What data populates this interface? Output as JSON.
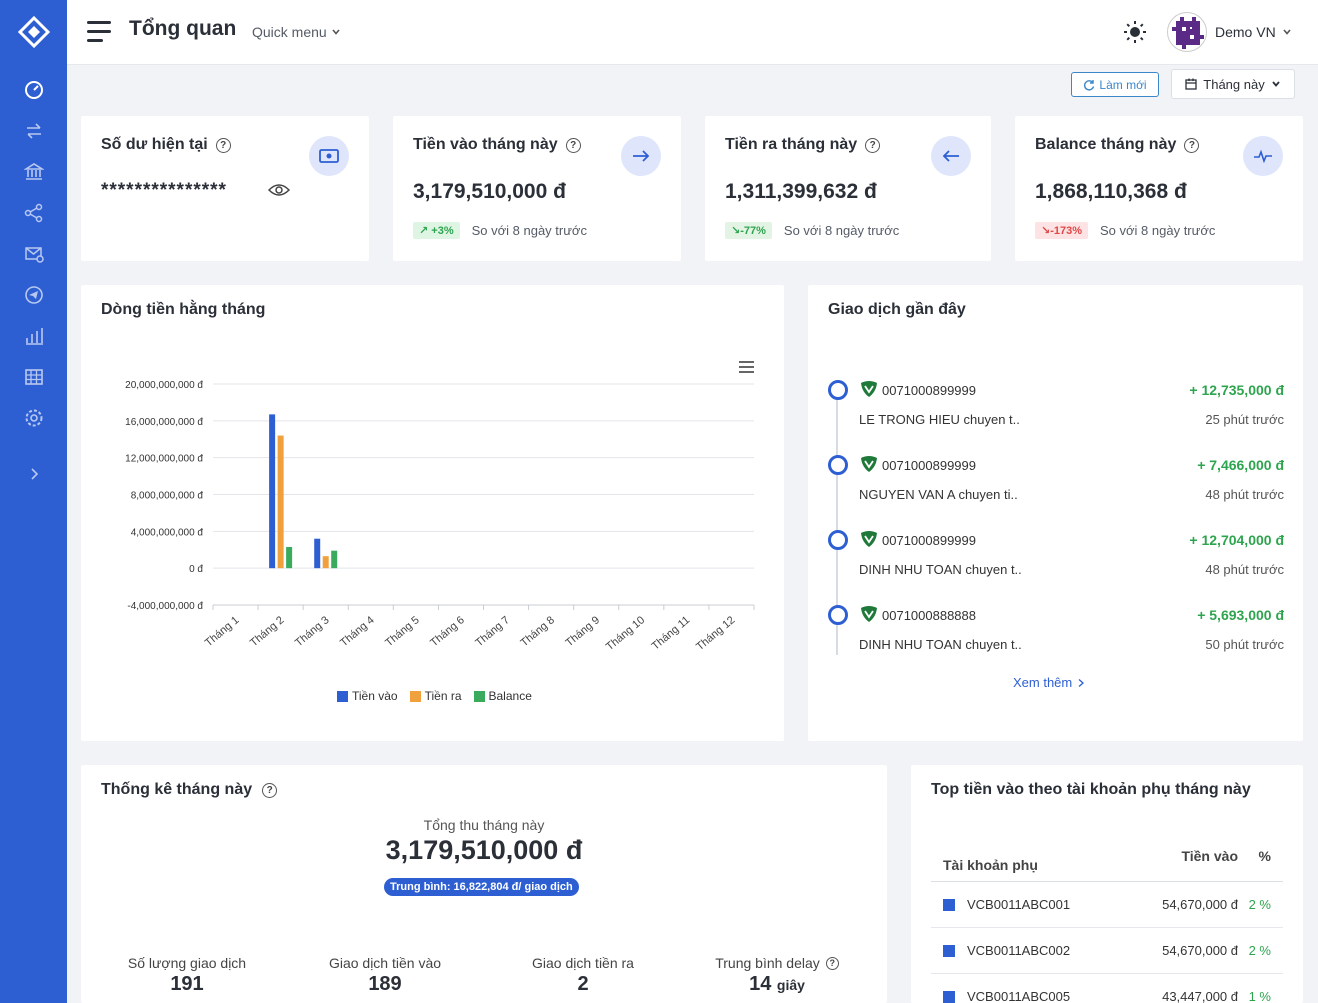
{
  "header": {
    "title": "Tổng quan",
    "quick_menu": "Quick menu",
    "user": "Demo VN",
    "refresh": "Làm mới",
    "period": "Tháng này"
  },
  "stats": {
    "balance": {
      "title": "Số dư hiện tại",
      "value": "***************"
    },
    "in": {
      "title": "Tiền vào tháng này",
      "value": "3,179,510,000 đ",
      "change": "↗ +3%",
      "note": "So với 8 ngày trước"
    },
    "out": {
      "title": "Tiền ra tháng này",
      "value": "1,311,399,632 đ",
      "change": "↘-77%",
      "note": "So với 8 ngày trước"
    },
    "net": {
      "title": "Balance tháng này",
      "value": "1,868,110,368 đ",
      "change": "↘-173%",
      "note": "So với 8 ngày trước"
    }
  },
  "cashflow": {
    "title": "Dòng tiền hằng tháng"
  },
  "chart_data": {
    "type": "bar",
    "title": "Dòng tiền hằng tháng",
    "categories": [
      "Tháng 1",
      "Tháng 2",
      "Tháng 3",
      "Tháng 4",
      "Tháng 5",
      "Tháng 6",
      "Tháng 7",
      "Tháng 8",
      "Tháng 9",
      "Tháng 10",
      "Tháng 11",
      "Tháng 12"
    ],
    "series": [
      {
        "name": "Tiền vào",
        "color": "#2d5fd3",
        "values": [
          0,
          16700000000,
          3200000000,
          0,
          0,
          0,
          0,
          0,
          0,
          0,
          0,
          0
        ]
      },
      {
        "name": "Tiền ra",
        "color": "#f0a03c",
        "values": [
          0,
          14400000000,
          1300000000,
          0,
          0,
          0,
          0,
          0,
          0,
          0,
          0,
          0
        ]
      },
      {
        "name": "Balance",
        "color": "#3aaa5c",
        "values": [
          0,
          2300000000,
          1900000000,
          0,
          0,
          0,
          0,
          0,
          0,
          0,
          0,
          0
        ]
      }
    ],
    "ylim": [
      -4000000000,
      20000000000
    ],
    "yticks": [
      20000000000,
      16000000000,
      12000000000,
      8000000000,
      4000000000,
      0,
      -4000000000
    ],
    "ytick_labels": [
      "20,000,000,000 đ",
      "16,000,000,000 đ",
      "12,000,000,000 đ",
      "8,000,000,000 đ",
      "4,000,000,000 đ",
      "0 đ",
      "-4,000,000,000 đ"
    ],
    "grid": true,
    "legend": "bottom"
  },
  "recent": {
    "title": "Giao dịch gần đây",
    "items": [
      {
        "account": "0071000899999",
        "amount": "+ 12,735,000 đ",
        "desc": "LE TRONG HIEU chuyen t..",
        "time": "25 phút trước"
      },
      {
        "account": "0071000899999",
        "amount": "+ 7,466,000 đ",
        "desc": "NGUYEN VAN A chuyen ti..",
        "time": "48 phút trước"
      },
      {
        "account": "0071000899999",
        "amount": "+ 12,704,000 đ",
        "desc": "DINH NHU TOAN chuyen t..",
        "time": "48 phút trước"
      },
      {
        "account": "0071000888888",
        "amount": "+ 5,693,000 đ",
        "desc": "DINH NHU TOAN chuyen t..",
        "time": "50 phút trước"
      }
    ],
    "see_more": "Xem thêm"
  },
  "month_stats": {
    "title": "Thống kê tháng này",
    "total_label": "Tổng thu tháng này",
    "total_value": "3,179,510,000 đ",
    "average": "Trung bình: 16,822,804 đ/ giao dịch",
    "kpis": [
      {
        "label": "Số lượng giao dịch",
        "value": "191",
        "unit": ""
      },
      {
        "label": "Giao dịch tiền vào",
        "value": "189",
        "unit": ""
      },
      {
        "label": "Giao dịch tiền ra",
        "value": "2",
        "unit": ""
      },
      {
        "label": "Trung bình delay",
        "value": "14",
        "unit": "giây"
      }
    ]
  },
  "top_accounts": {
    "title": "Top tiền vào theo tài khoản phụ tháng này",
    "columns": [
      "Tài khoản phụ",
      "Tiền vào",
      "%"
    ],
    "rows": [
      {
        "account": "VCB0011ABC001",
        "amount": "54,670,000 đ",
        "pct": "2 %"
      },
      {
        "account": "VCB0011ABC002",
        "amount": "54,670,000 đ",
        "pct": "2 %"
      },
      {
        "account": "VCB0011ABC005",
        "amount": "43,447,000 đ",
        "pct": "1 %"
      }
    ]
  }
}
